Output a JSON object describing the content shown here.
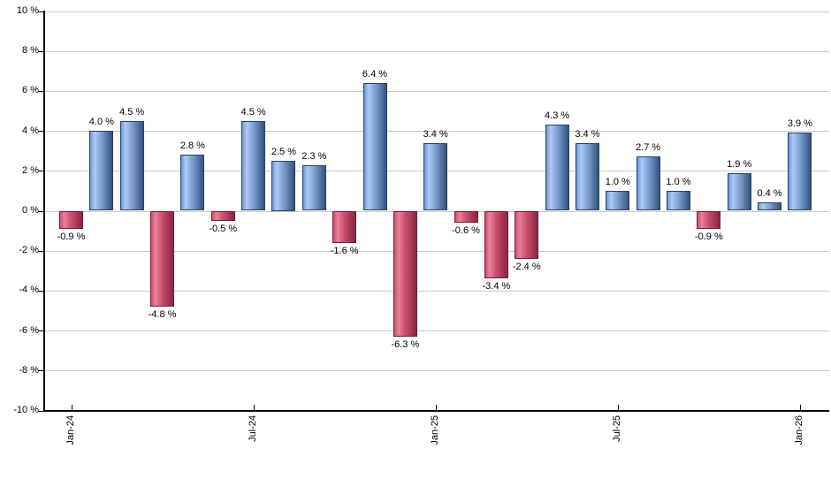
{
  "chart_data": {
    "type": "bar",
    "title": "",
    "xlabel": "",
    "ylabel": "",
    "ylim": [
      -10,
      10
    ],
    "y_tick_step": 2,
    "grid": "horizontal",
    "legend": false,
    "y_ticks": [
      {
        "value": 10,
        "label": "10 %"
      },
      {
        "value": 8,
        "label": "8 %"
      },
      {
        "value": 6,
        "label": "6 %"
      },
      {
        "value": 4,
        "label": "4 %"
      },
      {
        "value": 2,
        "label": "2 %"
      },
      {
        "value": 0,
        "label": "0 %"
      },
      {
        "value": -2,
        "label": "-2 %"
      },
      {
        "value": -4,
        "label": "-4 %"
      },
      {
        "value": -6,
        "label": "-6 %"
      },
      {
        "value": -8,
        "label": "-8 %"
      },
      {
        "value": -10,
        "label": "-10 %"
      }
    ],
    "x_ticks": [
      {
        "bar_index": 0,
        "label": "Jan-24"
      },
      {
        "bar_index": 6,
        "label": "Jul-24"
      },
      {
        "bar_index": 12,
        "label": "Jan-25"
      },
      {
        "bar_index": 18,
        "label": "Jul-25"
      },
      {
        "bar_index": 24,
        "label": "Jan-26"
      }
    ],
    "bars": [
      {
        "value": -0.9,
        "label": "-0.9 %"
      },
      {
        "value": 4.0,
        "label": "4.0 %"
      },
      {
        "value": 4.5,
        "label": "4.5 %"
      },
      {
        "value": -4.8,
        "label": "-4.8 %"
      },
      {
        "value": 2.8,
        "label": "2.8 %"
      },
      {
        "value": -0.5,
        "label": "-0.5 %"
      },
      {
        "value": 4.5,
        "label": "4.5 %"
      },
      {
        "value": 2.5,
        "label": "2.5 %"
      },
      {
        "value": 2.3,
        "label": "2.3 %"
      },
      {
        "value": -1.6,
        "label": "-1.6 %"
      },
      {
        "value": 6.4,
        "label": "6.4 %"
      },
      {
        "value": -6.3,
        "label": "-6.3 %"
      },
      {
        "value": 3.4,
        "label": "3.4 %"
      },
      {
        "value": -0.6,
        "label": "-0.6 %"
      },
      {
        "value": -3.4,
        "label": "-3.4 %"
      },
      {
        "value": -2.4,
        "label": "-2.4 %"
      },
      {
        "value": 4.3,
        "label": "4.3 %"
      },
      {
        "value": 3.4,
        "label": "3.4 %"
      },
      {
        "value": 1.0,
        "label": "1.0 %"
      },
      {
        "value": 2.7,
        "label": "2.7 %"
      },
      {
        "value": 1.0,
        "label": "1.0 %"
      },
      {
        "value": -0.9,
        "label": "-0.9 %"
      },
      {
        "value": 1.9,
        "label": "1.9 %"
      },
      {
        "value": 0.4,
        "label": "0.4 %"
      },
      {
        "value": 3.9,
        "label": "3.9 %"
      }
    ],
    "colors": {
      "positive": {
        "edge": "#7396c9",
        "highlight": "#adcaf4",
        "mid": "#7e9fd2",
        "dark": "#33537e",
        "border": "#24436b"
      },
      "negative": {
        "edge": "#c25672",
        "highlight": "#ea7f9a",
        "mid": "#c94e6e",
        "dark": "#8c2343",
        "border": "#741c37"
      },
      "gridline": "#c9c9c9",
      "axis": "#000000",
      "text": "#000000",
      "background": "#ffffff"
    }
  }
}
